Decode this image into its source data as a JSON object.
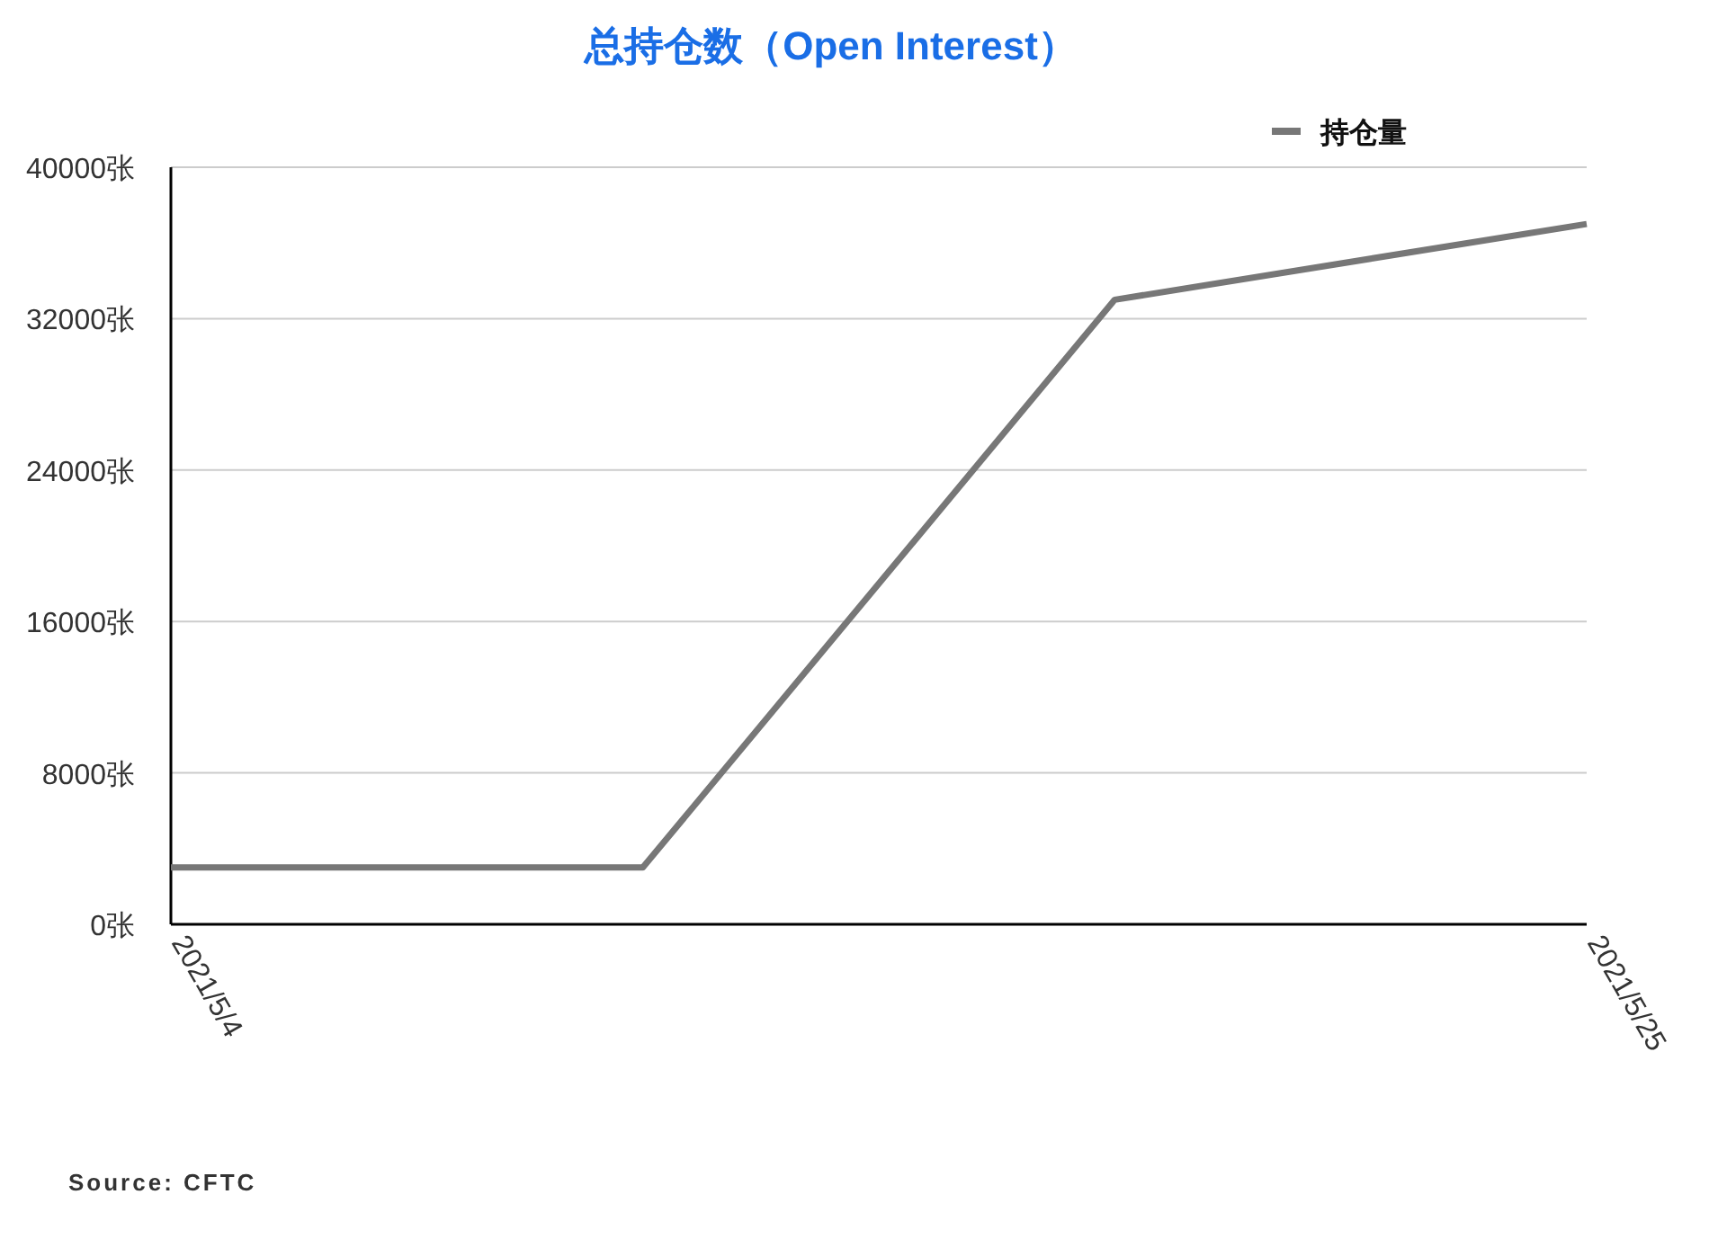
{
  "chart_data": {
    "type": "line",
    "title": "总持仓数（Open Interest）",
    "categories": [
      "2021/5/4",
      null,
      null,
      "2021/5/25"
    ],
    "series": [
      {
        "name": "持仓量",
        "color": "#777777",
        "values": [
          3000,
          3000,
          33000,
          37000
        ]
      }
    ],
    "ylim": [
      0,
      40000
    ],
    "yticks": [
      {
        "value": 0,
        "label": "0张"
      },
      {
        "value": 8000,
        "label": "8000张"
      },
      {
        "value": 16000,
        "label": "16000张"
      },
      {
        "value": 24000,
        "label": "24000张"
      },
      {
        "value": 32000,
        "label": "32000张"
      },
      {
        "value": 40000,
        "label": "40000张"
      }
    ],
    "grid": "y",
    "legend": "top right",
    "marker": "none",
    "line_style": "solid",
    "annotations": [
      "Source: CFTC"
    ]
  }
}
